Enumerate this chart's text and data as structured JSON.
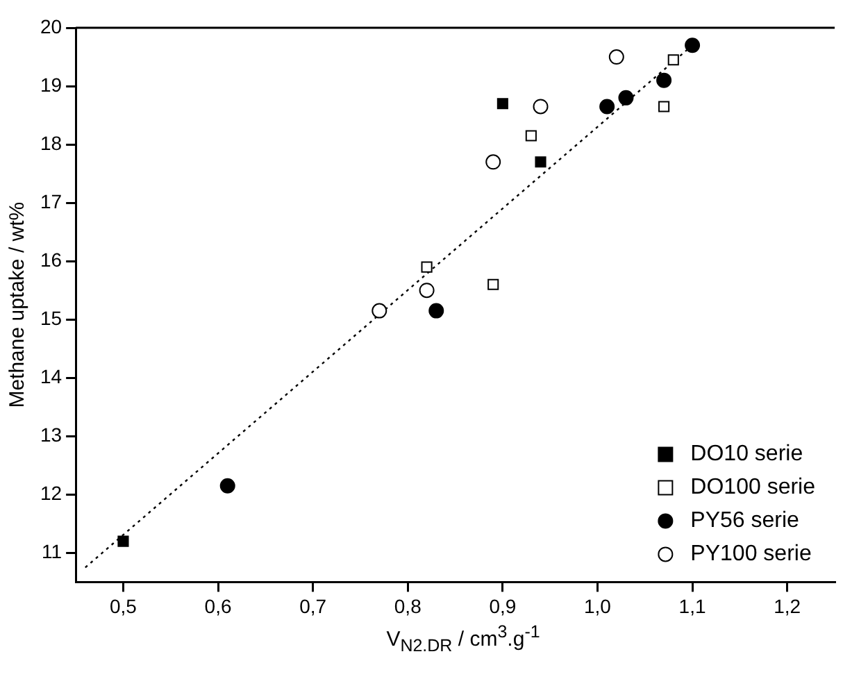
{
  "chart_data": {
    "type": "scatter",
    "xlabel": "V$_{N2.DR}$ / cm$^{3}$.g$^{-1}$",
    "ylabel": "Methane uptake / wt%",
    "xlim": [
      0.45,
      1.25
    ],
    "ylim": [
      10.5,
      20
    ],
    "xticks": [
      {
        "value": 0.5,
        "label": "0,5"
      },
      {
        "value": 0.6,
        "label": "0,6"
      },
      {
        "value": 0.7,
        "label": "0,7"
      },
      {
        "value": 0.8,
        "label": "0,8"
      },
      {
        "value": 0.9,
        "label": "0,9"
      },
      {
        "value": 1.0,
        "label": "1,0"
      },
      {
        "value": 1.1,
        "label": "1,1"
      },
      {
        "value": 1.2,
        "label": "1,2"
      }
    ],
    "yticks": [
      11,
      12,
      13,
      14,
      15,
      16,
      17,
      18,
      19,
      20
    ],
    "grid": false,
    "legend": "bottom right",
    "series": [
      {
        "name": "DO10 serie",
        "color": "#000000",
        "marker": "square",
        "x": [
          0.5,
          0.9,
          0.94
        ],
        "values": [
          11.2,
          18.7,
          17.7
        ]
      },
      {
        "name": "DO100 serie",
        "color": "#ffffff",
        "marker": "square",
        "x": [
          0.82,
          0.89,
          0.93,
          1.07,
          1.08
        ],
        "values": [
          15.9,
          15.6,
          18.15,
          18.65,
          19.45
        ]
      },
      {
        "name": "PY56 serie",
        "color": "#000000",
        "marker": "circle",
        "x": [
          0.61,
          0.83,
          1.01,
          1.03,
          1.07,
          1.1
        ],
        "values": [
          12.15,
          15.15,
          18.65,
          18.8,
          19.1,
          19.7
        ]
      },
      {
        "name": "PY100 serie",
        "color": "#ffffff",
        "marker": "circle",
        "x": [
          0.77,
          0.82,
          0.89,
          0.94,
          1.02
        ],
        "values": [
          15.15,
          15.5,
          17.7,
          18.65,
          19.5
        ]
      },
      {
        "type": "line",
        "color": "#000000",
        "marker": "none",
        "line_style": "dotted",
        "x": [
          0.46,
          1.1
        ],
        "values": [
          10.75,
          19.7
        ]
      }
    ]
  }
}
